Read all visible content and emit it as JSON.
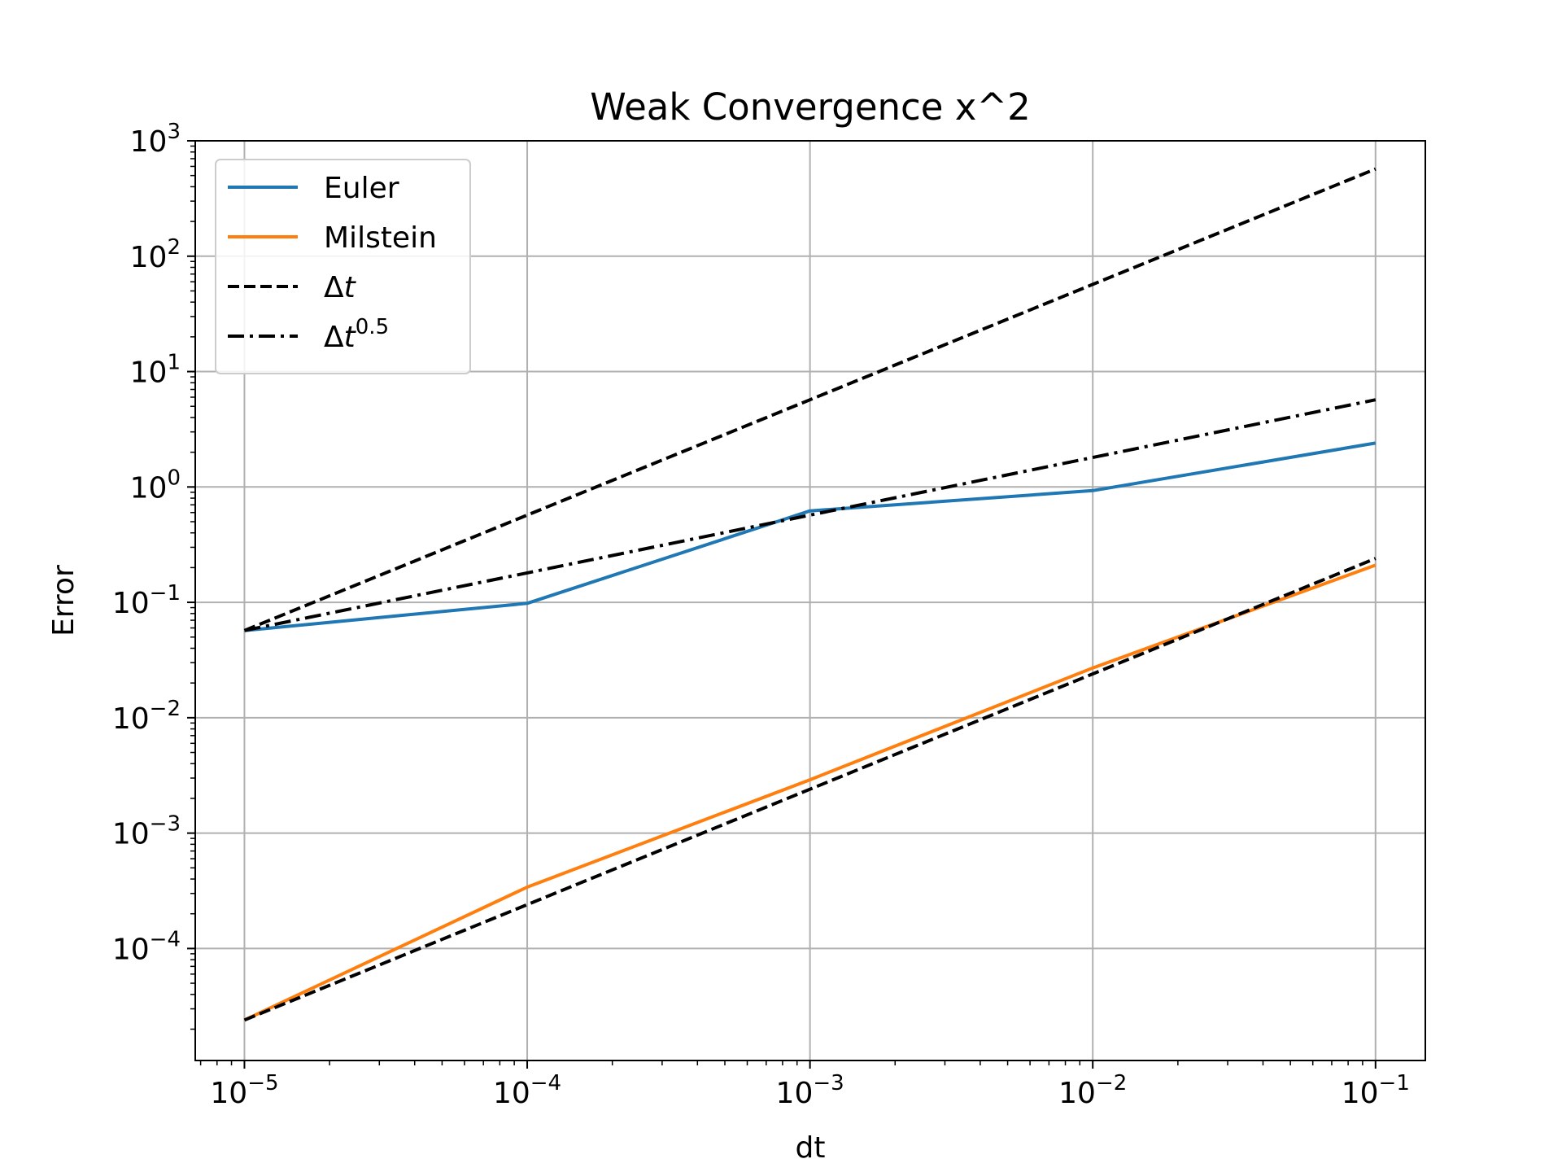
{
  "chart_data": {
    "type": "line",
    "title": "Weak Convergence x^2",
    "xlabel": "dt",
    "ylabel": "Error",
    "xscale": "log",
    "yscale": "log",
    "xlim": [
      6.7e-06,
      0.15
    ],
    "ylim": [
      1.07e-05,
      1000
    ],
    "grid": true,
    "legend_position": "upper left",
    "x": [
      1e-05,
      0.0001,
      0.001,
      0.01,
      0.1
    ],
    "xticks": [
      {
        "value": 1e-05,
        "base": "10",
        "exp": "−5"
      },
      {
        "value": 0.0001,
        "base": "10",
        "exp": "−4"
      },
      {
        "value": 0.001,
        "base": "10",
        "exp": "−3"
      },
      {
        "value": 0.01,
        "base": "10",
        "exp": "−2"
      },
      {
        "value": 0.1,
        "base": "10",
        "exp": "−1"
      }
    ],
    "yticks": [
      {
        "value": 0.0001,
        "base": "10",
        "exp": "−4"
      },
      {
        "value": 0.001,
        "base": "10",
        "exp": "−3"
      },
      {
        "value": 0.01,
        "base": "10",
        "exp": "−2"
      },
      {
        "value": 0.1,
        "base": "10",
        "exp": "−1"
      },
      {
        "value": 1,
        "base": "10",
        "exp": "0"
      },
      {
        "value": 10,
        "base": "10",
        "exp": "1"
      },
      {
        "value": 100,
        "base": "10",
        "exp": "2"
      },
      {
        "value": 1000,
        "base": "10",
        "exp": "3"
      }
    ],
    "series": [
      {
        "name": "Euler",
        "color": "#1f77b4",
        "style": "solid",
        "values": [
          0.057,
          0.098,
          0.62,
          0.93,
          2.4
        ]
      },
      {
        "name": "Milstein",
        "color": "#ff7f0e",
        "style": "solid",
        "values": [
          2.4e-05,
          0.00034,
          0.0029,
          0.027,
          0.21
        ]
      },
      {
        "name": "Δt",
        "legend_main": "Δ",
        "legend_italic": "t",
        "legend_sup": "",
        "color": "#000000",
        "style": "dashed",
        "values": [
          0.057,
          0.57,
          5.7,
          57,
          570
        ]
      },
      {
        "name": "",
        "color": "#000000",
        "style": "dashed",
        "values": [
          2.4e-05,
          0.00024,
          0.0024,
          0.024,
          0.24
        ]
      },
      {
        "name": "Δt^0.5",
        "legend_main": "Δ",
        "legend_italic": "t",
        "legend_sup": "0.5",
        "color": "#000000",
        "style": "dashdot",
        "values": [
          0.057,
          0.18,
          0.57,
          1.8,
          5.7
        ]
      }
    ]
  }
}
